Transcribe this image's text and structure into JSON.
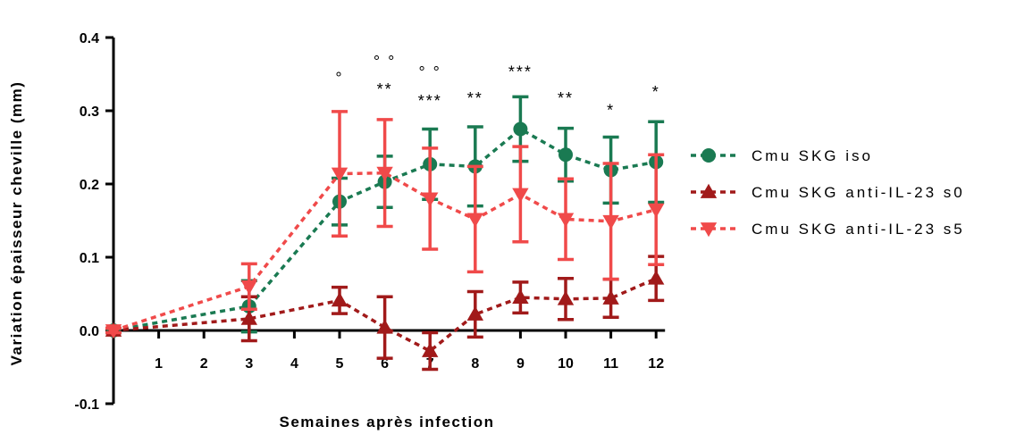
{
  "chart_data": {
    "type": "line",
    "xlabel": "Semaines après infection",
    "ylabel": "Variation épaisseur cheville (mm)",
    "xlim": [
      0,
      12
    ],
    "ylim": [
      -0.1,
      0.4
    ],
    "y_ticks": [
      "-0.1",
      "0.0",
      "0.1",
      "0.2",
      "0.3",
      "0.4"
    ],
    "x_ticks": [
      "1",
      "2",
      "3",
      "4",
      "5",
      "6",
      "7",
      "8",
      "9",
      "10",
      "11",
      "12"
    ],
    "legend_position": "right",
    "series": [
      {
        "name": "Cmu SKG iso",
        "color": "#1a7a52",
        "marker": "circle",
        "x": [
          0,
          3,
          5,
          6,
          7,
          8,
          9,
          10,
          11,
          12
        ],
        "y": [
          0.0,
          0.033,
          0.176,
          0.203,
          0.227,
          0.224,
          0.275,
          0.24,
          0.219,
          0.23
        ],
        "err": [
          0.003,
          0.035,
          0.032,
          0.035,
          0.048,
          0.054,
          0.044,
          0.036,
          0.045,
          0.055
        ]
      },
      {
        "name": "Cmu SKG anti-IL-23 s0",
        "color": "#a11a1a",
        "marker": "triangle-up",
        "x": [
          0,
          3,
          5,
          6,
          7,
          8,
          9,
          10,
          11,
          12
        ],
        "y": [
          0.0,
          0.016,
          0.041,
          0.004,
          -0.028,
          0.022,
          0.045,
          0.043,
          0.044,
          0.071
        ],
        "err": [
          0.003,
          0.03,
          0.018,
          0.042,
          0.025,
          0.031,
          0.021,
          0.028,
          0.026,
          0.03
        ]
      },
      {
        "name": "Cmu SKG anti-IL-23 s5",
        "color": "#f04a4a",
        "marker": "triangle-down",
        "x": [
          0,
          3,
          5,
          6,
          7,
          8,
          9,
          10,
          11,
          12
        ],
        "y": [
          0.0,
          0.06,
          0.214,
          0.215,
          0.18,
          0.152,
          0.186,
          0.152,
          0.149,
          0.165
        ],
        "err": [
          0.003,
          0.031,
          0.085,
          0.073,
          0.069,
          0.072,
          0.065,
          0.055,
          0.079,
          0.075
        ]
      }
    ],
    "annotations": [
      {
        "x": 5,
        "y": 0.337,
        "text": "°"
      },
      {
        "x": 6,
        "y": 0.36,
        "text": "° °"
      },
      {
        "x": 6,
        "y": 0.322,
        "text": "**"
      },
      {
        "x": 7,
        "y": 0.345,
        "text": "° °"
      },
      {
        "x": 7,
        "y": 0.306,
        "text": "***"
      },
      {
        "x": 8,
        "y": 0.31,
        "text": "**"
      },
      {
        "x": 9,
        "y": 0.346,
        "text": "***"
      },
      {
        "x": 10,
        "y": 0.31,
        "text": "**"
      },
      {
        "x": 11,
        "y": 0.293,
        "text": "*"
      },
      {
        "x": 12,
        "y": 0.318,
        "text": "*"
      }
    ]
  }
}
